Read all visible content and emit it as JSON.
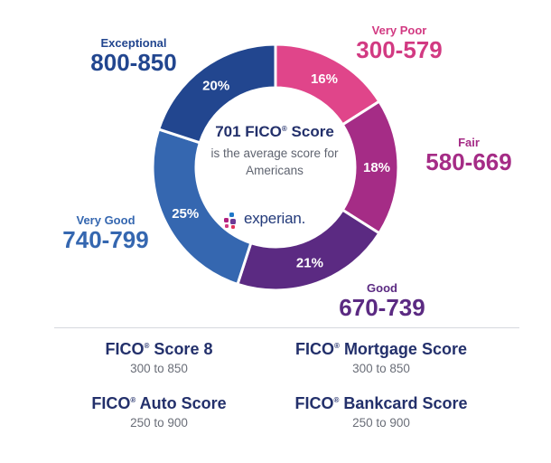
{
  "chart_data": {
    "type": "pie",
    "categories": [
      "Very Poor",
      "Fair",
      "Good",
      "Very Good",
      "Exceptional"
    ],
    "ranges": [
      "300-579",
      "580-669",
      "670-739",
      "740-799",
      "800-850"
    ],
    "values": [
      16,
      18,
      21,
      25,
      20
    ],
    "value_labels": [
      "16%",
      "18%",
      "21%",
      "25%",
      "20%"
    ],
    "colors": [
      "#e0458a",
      "#a52c86",
      "#5b2a82",
      "#3567b0",
      "#22468f"
    ],
    "label_colors": [
      "#d23a82",
      "#a52c86",
      "#5b2a82",
      "#3567b0",
      "#22468f"
    ]
  },
  "center": {
    "average_main": "701 FICO",
    "average_reg": "®",
    "average_suffix": " Score",
    "line1": "is the average score for",
    "line2": "Americans",
    "logo": "experian."
  },
  "models": [
    {
      "name": "FICO",
      "reg": "®",
      "suffix": " Score 8",
      "range": "300 to 850"
    },
    {
      "name": "FICO",
      "reg": "®",
      "suffix": " Mortgage Score",
      "range": "300 to 850"
    },
    {
      "name": "FICO",
      "reg": "®",
      "suffix": " Auto Score",
      "range": "250 to 900"
    },
    {
      "name": "FICO",
      "reg": "®",
      "suffix": " Bankcard Score",
      "range": "250 to 900"
    }
  ]
}
